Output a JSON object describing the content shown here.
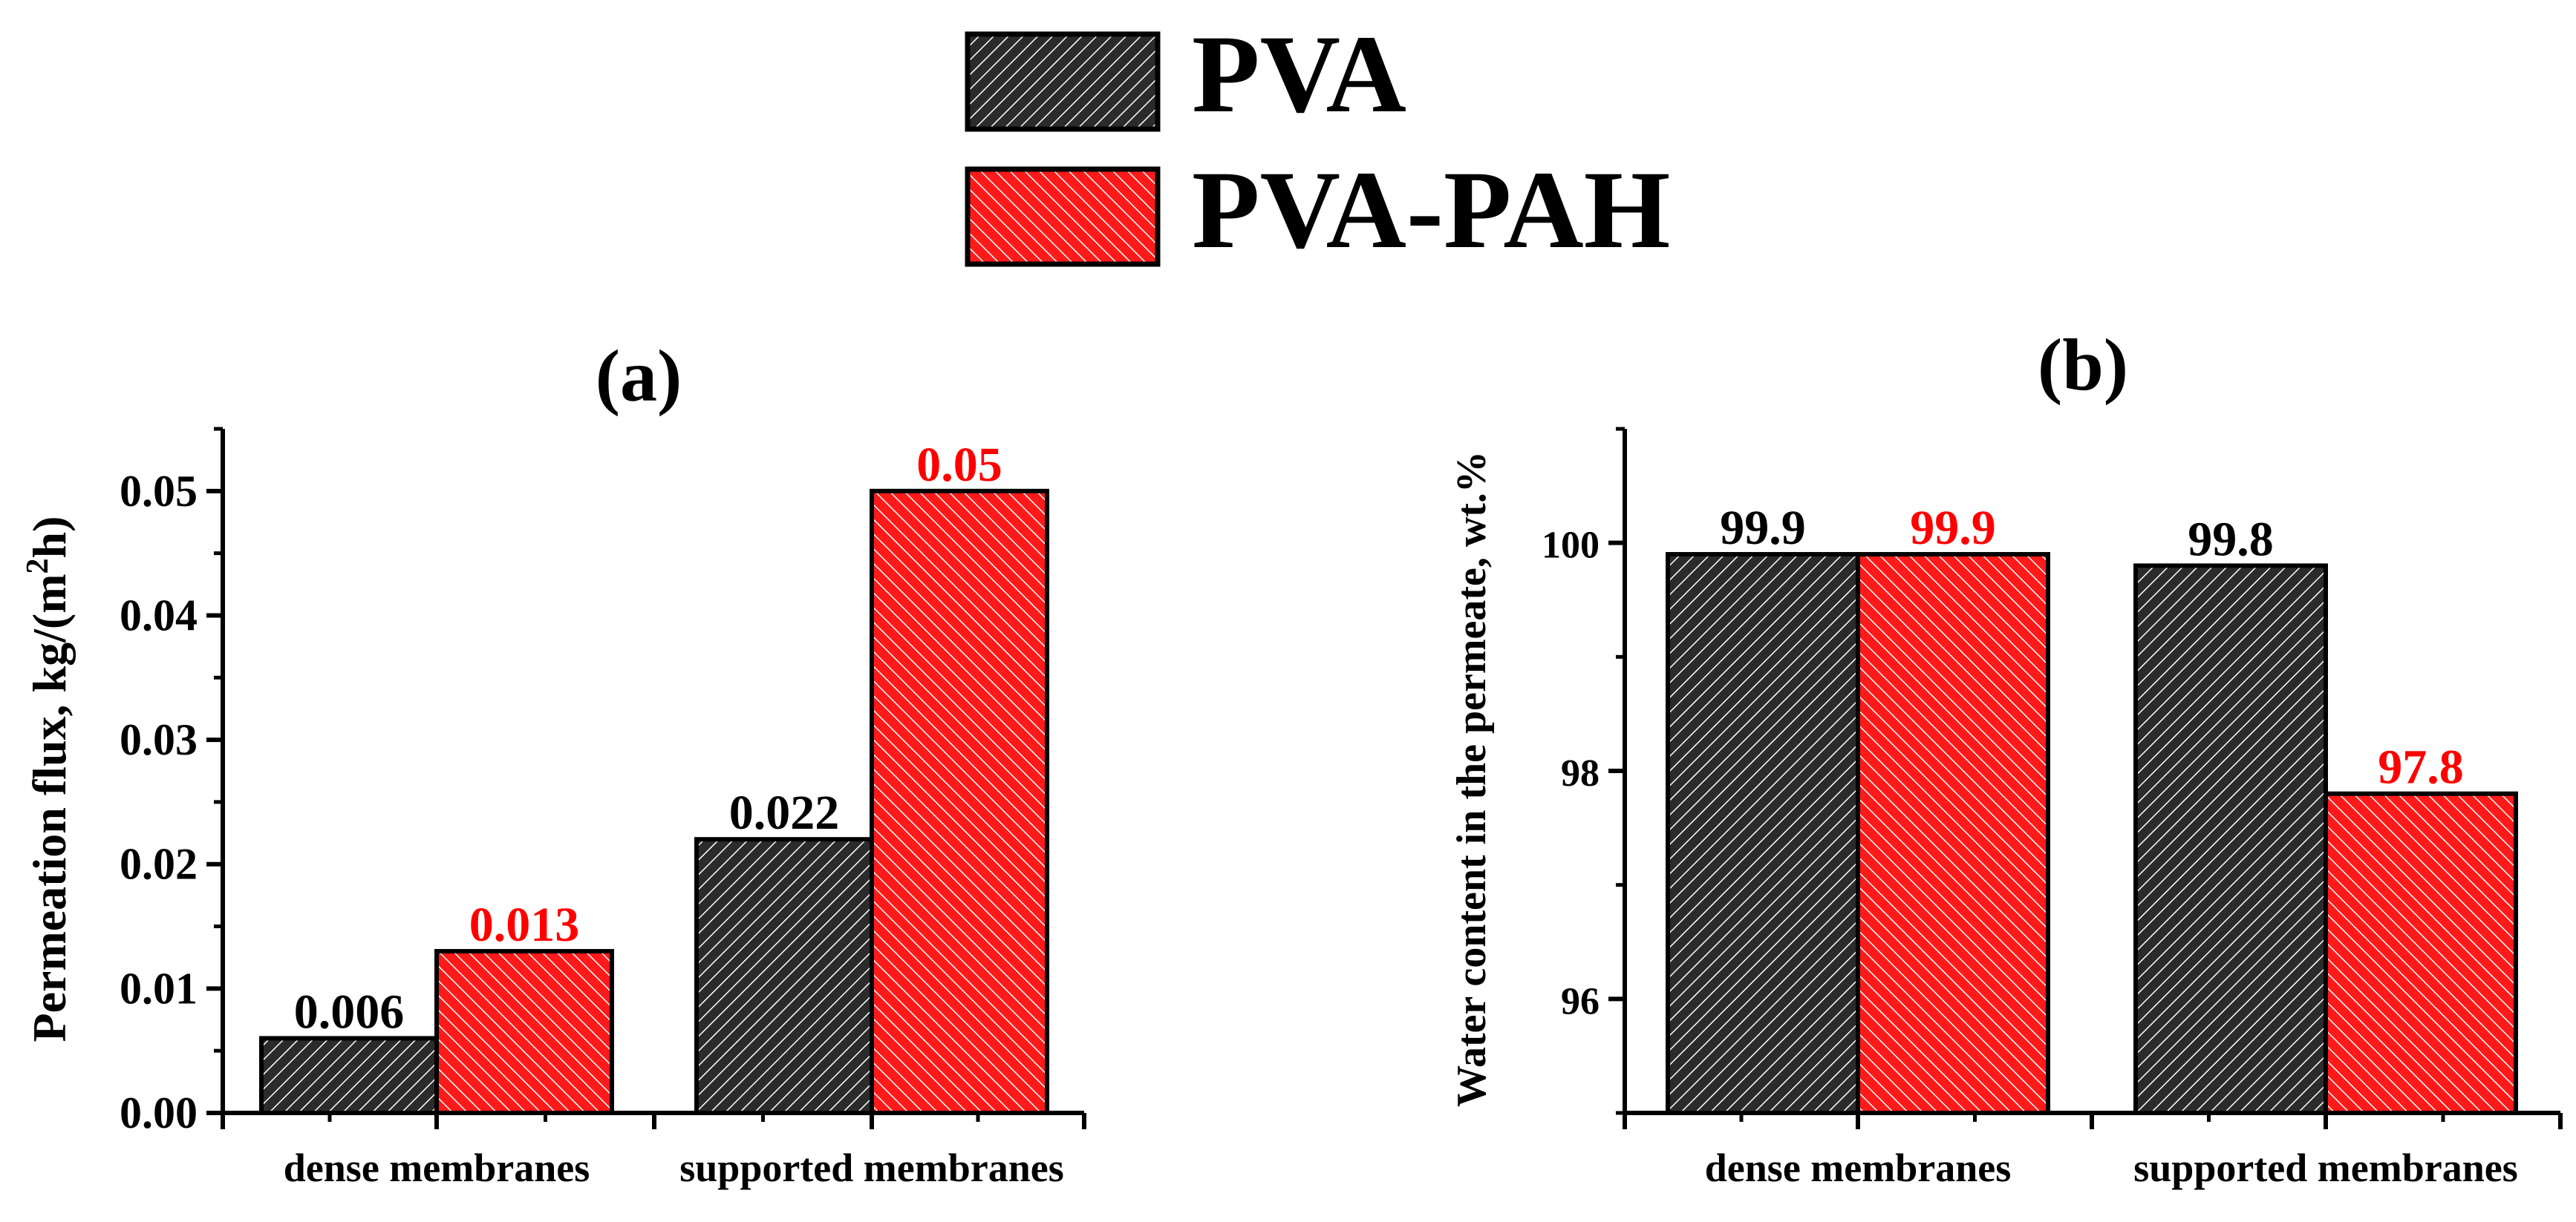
{
  "legend": {
    "items": [
      {
        "label": "PVA",
        "color": "#2b2b2b",
        "hatch_color": "#ffffff"
      },
      {
        "label": "PVA-PAH",
        "color": "#ff1a1a",
        "hatch_color": "#ffffff"
      }
    ]
  },
  "colors": {
    "pva_value_label": "#000000",
    "pah_value_label": "#ff0000",
    "axis": "#000000"
  },
  "chart_data": [
    {
      "type": "bar",
      "panel_label": "(a)",
      "ylabel": "Permeation flux, kg/(m",
      "ylabel_sup": "2",
      "ylabel_end": "h)",
      "xlabel": "",
      "categories": [
        "dense membranes",
        "supported membranes"
      ],
      "ylim": [
        0,
        0.055
      ],
      "yticks": [
        0.0,
        0.01,
        0.02,
        0.03,
        0.04,
        0.05
      ],
      "ytick_labels": [
        "0.00",
        "0.01",
        "0.02",
        "0.03",
        "0.04",
        "0.05"
      ],
      "series": [
        {
          "name": "PVA",
          "values": [
            0.006,
            0.022
          ],
          "labels": [
            "0.006",
            "0.022"
          ]
        },
        {
          "name": "PVA-PAH",
          "values": [
            0.013,
            0.05
          ],
          "labels": [
            "0.013",
            "0.05"
          ]
        }
      ]
    },
    {
      "type": "bar",
      "panel_label": "(b)",
      "ylabel": "Water content in the permeate, wt.%",
      "ylabel_sup": "",
      "ylabel_end": "",
      "xlabel": "",
      "categories": [
        "dense membranes",
        "supported membranes"
      ],
      "ylim": [
        95,
        101
      ],
      "yticks": [
        96,
        98,
        100
      ],
      "ytick_labels": [
        "96",
        "98",
        "100"
      ],
      "series": [
        {
          "name": "PVA",
          "values": [
            99.9,
            99.8
          ],
          "labels": [
            "99.9",
            "99.8"
          ]
        },
        {
          "name": "PVA-PAH",
          "values": [
            99.9,
            97.8
          ],
          "labels": [
            "99.9",
            "97.8"
          ]
        }
      ]
    }
  ]
}
